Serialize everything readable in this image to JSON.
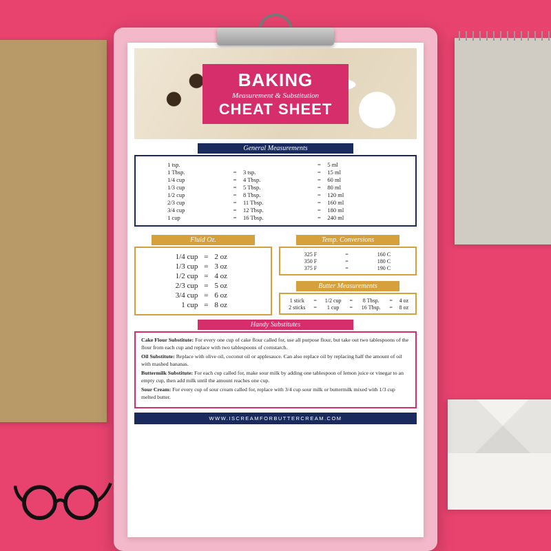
{
  "colors": {
    "pink_bg": "#e8436f",
    "magenta": "#d62e6b",
    "navy": "#1a2a5c",
    "gold": "#d6a13d",
    "clipboard": "#f3b8c9",
    "sheet": "#ffffff"
  },
  "title": {
    "line1": "BAKING",
    "sub": "Measurement & Substitution",
    "line2": "CHEAT SHEET"
  },
  "sections": {
    "general": {
      "label": "General Measurements",
      "border_color": "#1a2a5c",
      "label_bg": "#1a2a5c",
      "rows": [
        [
          "1 tsp.",
          "",
          "",
          "=",
          "5 ml"
        ],
        [
          "1 Tbsp.",
          "=",
          "3 tsp.",
          "=",
          "15 ml"
        ],
        [
          "1/4 cup",
          "=",
          "4 Tbsp.",
          "=",
          "60 ml"
        ],
        [
          "1/3 cup",
          "=",
          "5 Tbsp.",
          "=",
          "80 ml"
        ],
        [
          "1/2 cup",
          "=",
          "8 Tbsp.",
          "=",
          "120 ml"
        ],
        [
          "2/3 cup",
          "=",
          "11 Tbsp.",
          "=",
          "160 ml"
        ],
        [
          "3/4 cup",
          "=",
          "12 Tbsp.",
          "=",
          "180 ml"
        ],
        [
          "1 cup",
          "=",
          "16 Tbsp.",
          "=",
          "240 ml"
        ]
      ]
    },
    "fluid": {
      "label": "Fluid Oz.",
      "border_color": "#d6a13d",
      "label_bg": "#d6a13d",
      "rows": [
        [
          "1/4 cup",
          "=",
          "2 oz"
        ],
        [
          "1/3 cup",
          "=",
          "3 oz"
        ],
        [
          "1/2 cup",
          "=",
          "4 oz"
        ],
        [
          "2/3 cup",
          "=",
          "5 oz"
        ],
        [
          "3/4 cup",
          "=",
          "6 oz"
        ],
        [
          "1 cup",
          "=",
          "8 oz"
        ]
      ]
    },
    "temp": {
      "label": "Temp. Conversions",
      "border_color": "#d6a13d",
      "label_bg": "#d6a13d",
      "rows": [
        [
          "325 F",
          "=",
          "160 C"
        ],
        [
          "350 F",
          "=",
          "180 C"
        ],
        [
          "375 F",
          "=",
          "190 C"
        ]
      ]
    },
    "butter": {
      "label": "Butter Measurements",
      "border_color": "#d6a13d",
      "label_bg": "#d6a13d",
      "rows": [
        [
          "1 stick",
          "=",
          "1/2 cup",
          "=",
          "8 Tbsp.",
          "=",
          "4 oz"
        ],
        [
          "2 sticks",
          "=",
          "1 cup",
          "=",
          "16 Tbsp.",
          "=",
          "8 oz"
        ]
      ]
    },
    "subs": {
      "label": "Handy Substitutes",
      "border_color": "#d62e6b",
      "label_bg": "#d62e6b",
      "items": [
        {
          "title": "Cake Flour Substitute:",
          "body": "For every one cup of cake flour called for, use all purpose flour, but take out two tablespoons of the flour from each cup and replace with two tablespoons of cornstarch."
        },
        {
          "title": "Oil Substitute:",
          "body": "Replace with olive oil, coconut oil or applesauce. Can also replace oil by replacing half the amount of oil with mashed bananas."
        },
        {
          "title": "Buttermilk Substitute:",
          "body": "For each cup called for, make sour milk by adding one tablespoon of lemon juice or vinegar to an empty cup, then add milk until the amount reaches one cup."
        },
        {
          "title": "Sour Cream:",
          "body": "For every cup of sour cream called for, replace with 3/4 cup sour milk or buttermilk mixed with 1/3 cup melted butter."
        }
      ]
    }
  },
  "footer": "WWW.ISCREAMFORBUTTERCREAM.COM"
}
